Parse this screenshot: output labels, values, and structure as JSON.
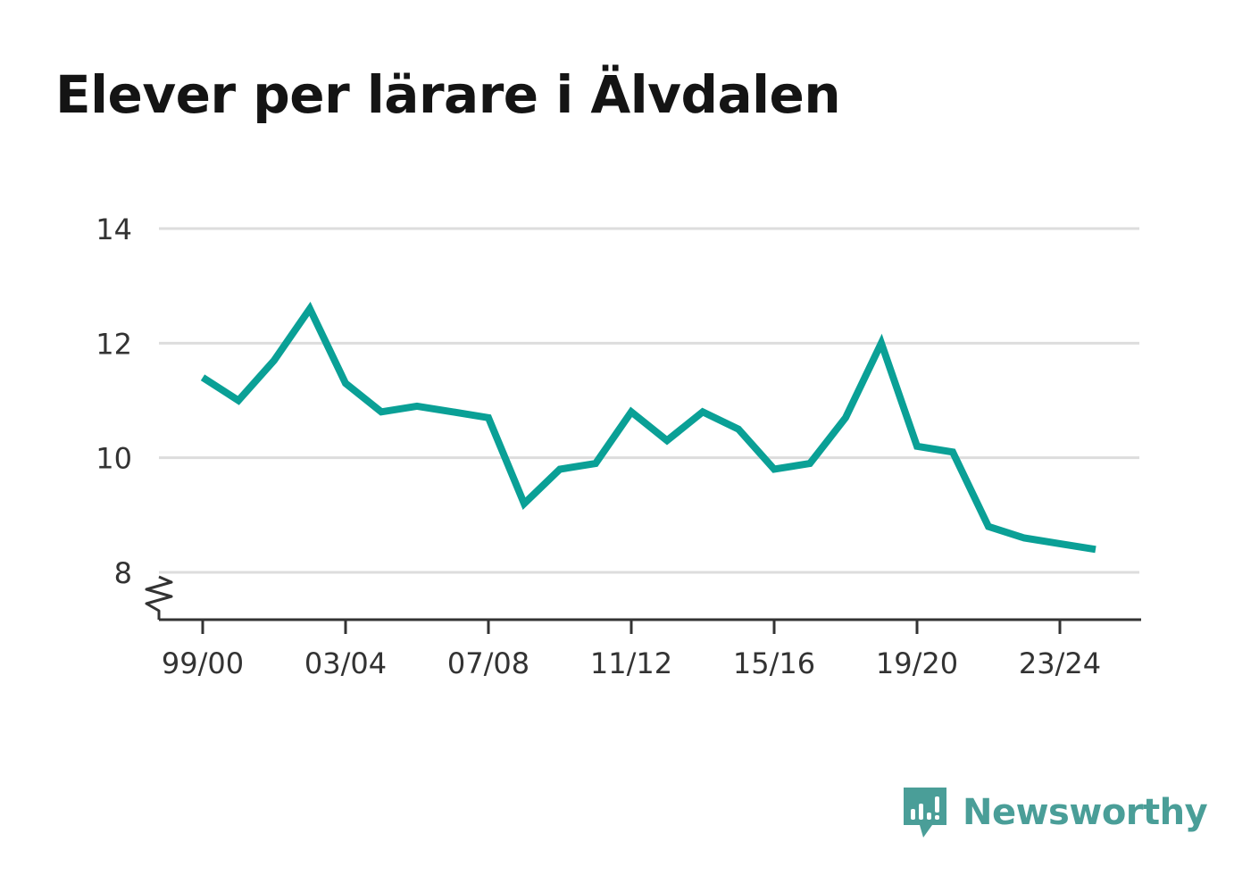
{
  "brand": {
    "name": "Newsworthy",
    "icon": "newsworthy-logo-icon",
    "color": "#4a9e98"
  },
  "colors": {
    "line": "#0aa096",
    "grid": "#dddddd",
    "axis": "#333333",
    "text": "#333333",
    "title": "#141414"
  },
  "chart_data": {
    "type": "line",
    "title": "Elever per lärare i Älvdalen",
    "xlabel": "",
    "ylabel": "",
    "ylim": [
      7.2,
      14
    ],
    "y_ticks": [
      "8",
      "10",
      "12",
      "14"
    ],
    "y_tick_values": [
      8,
      10,
      12,
      14
    ],
    "y_axis_break": true,
    "grid": true,
    "legend": "none",
    "x_tick_labels": [
      "99/00",
      "03/04",
      "07/08",
      "11/12",
      "15/16",
      "19/20",
      "23/24"
    ],
    "categories": [
      "99/00",
      "00/01",
      "01/02",
      "02/03",
      "03/04",
      "04/05",
      "05/06",
      "06/07",
      "07/08",
      "08/09",
      "09/10",
      "10/11",
      "11/12",
      "12/13",
      "13/14",
      "14/15",
      "15/16",
      "16/17",
      "17/18",
      "18/19",
      "19/20",
      "20/21",
      "21/22",
      "22/23",
      "23/24",
      "24/25"
    ],
    "series": [
      {
        "values": [
          11.4,
          11.0,
          11.7,
          12.6,
          11.3,
          10.8,
          10.9,
          10.8,
          10.7,
          9.2,
          9.8,
          9.9,
          10.8,
          10.3,
          10.8,
          10.5,
          9.8,
          9.9,
          10.7,
          12.0,
          10.2,
          10.1,
          8.8,
          8.6,
          8.5,
          8.4
        ]
      }
    ]
  }
}
